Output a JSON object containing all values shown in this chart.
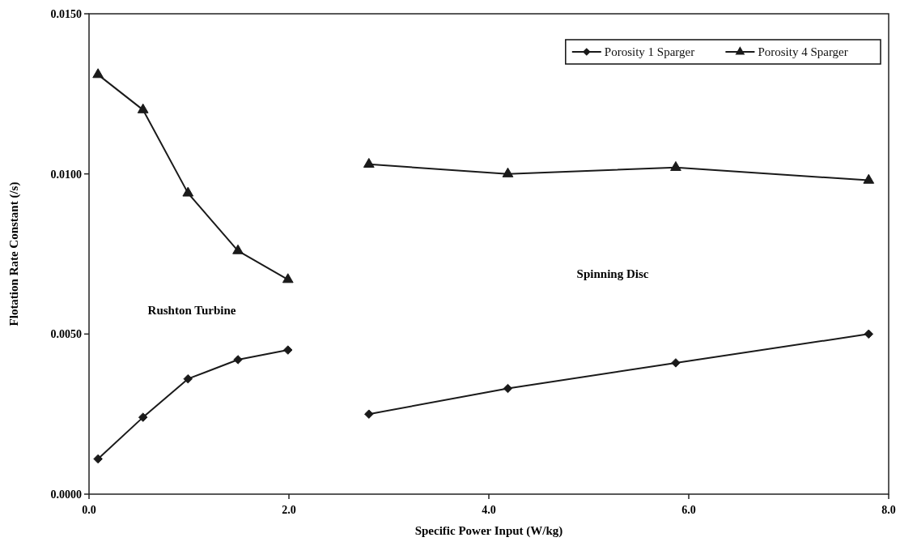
{
  "chart_data": {
    "type": "line",
    "xlabel": "Specific Power Input (W/kg)",
    "ylabel": "Flotation Rate Constant (/s)",
    "annotations": [
      "Rushton Turbine",
      "Spinning Disc"
    ],
    "xlim": [
      0,
      8
    ],
    "xticks": [
      {
        "value": 0,
        "label": "0.0"
      },
      {
        "value": 2,
        "label": "2.0"
      },
      {
        "value": 4,
        "label": "4.0"
      },
      {
        "value": 6,
        "label": "6.0"
      },
      {
        "value": 8,
        "label": "8.0"
      }
    ],
    "ylim": [
      0,
      0.015
    ],
    "yticks": [
      {
        "value": 0,
        "label": "0.0000"
      },
      {
        "value": 0.005,
        "label": "0.0050"
      },
      {
        "value": 0.01,
        "label": "0.0100"
      },
      {
        "value": 0.015,
        "label": "0.0150"
      }
    ],
    "grid": false,
    "legend": "top right",
    "line_style": "solid",
    "series": [
      {
        "name": "Porosity 1 Sparger",
        "color": "#1a1a1a",
        "marker": "diamond",
        "x": [
          0.09,
          0.54,
          0.99,
          1.49,
          1.99,
          null,
          2.8,
          4.19,
          5.87,
          7.8
        ],
        "values": [
          0.0011,
          0.0024,
          0.0036,
          0.0042,
          0.0045,
          null,
          0.0025,
          0.0033,
          0.0041,
          0.005
        ]
      },
      {
        "name": "Porosity 4 Sparger",
        "color": "#1a1a1a",
        "marker": "triangle",
        "x": [
          0.09,
          0.54,
          0.99,
          1.49,
          1.99,
          null,
          2.8,
          4.19,
          5.87,
          7.8
        ],
        "values": [
          0.0131,
          0.012,
          0.0094,
          0.0076,
          0.0067,
          null,
          0.0103,
          0.01,
          0.0102,
          0.0098
        ]
      }
    ]
  }
}
